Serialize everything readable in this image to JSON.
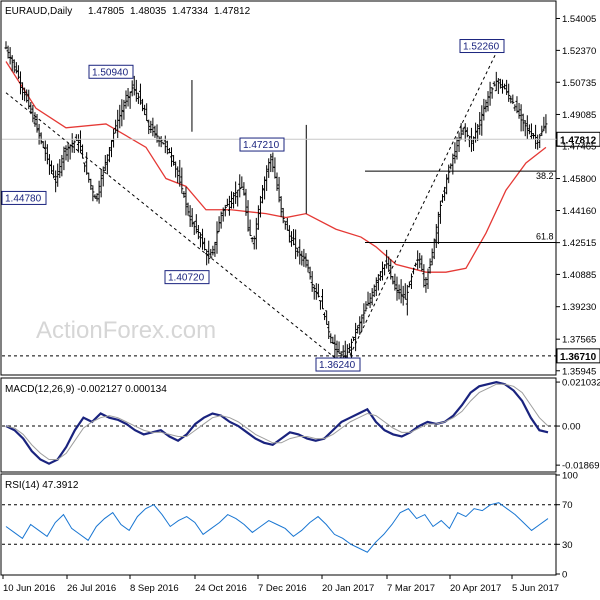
{
  "chart_data": [
    {
      "type": "candlestick",
      "title": "EURAUD,Daily",
      "ohlc_header": {
        "open": "1.47805",
        "high": "1.48035",
        "low": "1.47334",
        "close": "1.47812"
      },
      "ylim": [
        1.3578,
        1.5485
      ],
      "y_ticks": [
        "1.54005",
        "1.52370",
        "1.50735",
        "1.49085",
        "1.47465",
        "1.45800",
        "1.44160",
        "1.42515",
        "1.40885",
        "1.39230",
        "1.37565",
        "1.35945"
      ],
      "price_readout": "1.47812",
      "price_readout_value": 1.47812,
      "support_readout": "1.36710",
      "support_value": 1.3671,
      "x_ticks": [
        "10 Jun 2016",
        "26 Jul 2016",
        "8 Sep 2016",
        "24 Oct 2016",
        "7 Dec 2016",
        "20 Jan 2017",
        "7 Mar 2017",
        "20 Apr 2017",
        "5 Jun 2017"
      ],
      "bars_count": 262,
      "close_path_anchors": [
        [
          0,
          1.525
        ],
        [
          8,
          1.512
        ],
        [
          18,
          1.492
        ],
        [
          28,
          1.472
        ],
        [
          36,
          1.456
        ],
        [
          42,
          1.472
        ],
        [
          48,
          1.476
        ],
        [
          52,
          1.478
        ],
        [
          58,
          1.462
        ],
        [
          65,
          1.447
        ],
        [
          72,
          1.466
        ],
        [
          80,
          1.486
        ],
        [
          86,
          1.496
        ],
        [
          92,
          1.505
        ],
        [
          96,
          1.5
        ],
        [
          104,
          1.484
        ],
        [
          112,
          1.478
        ],
        [
          120,
          1.47
        ],
        [
          128,
          1.452
        ],
        [
          134,
          1.436
        ],
        [
          140,
          1.43
        ],
        [
          145,
          1.42
        ],
        [
          148,
          1.416
        ],
        [
          152,
          1.426
        ],
        [
          156,
          1.44
        ],
        [
          162,
          1.446
        ],
        [
          168,
          1.452
        ],
        [
          172,
          1.454
        ],
        [
          176,
          1.43
        ],
        [
          180,
          1.426
        ],
        [
          184,
          1.446
        ],
        [
          188,
          1.458
        ],
        [
          192,
          1.47
        ],
        [
          196,
          1.456
        ],
        [
          200,
          1.44
        ],
        [
          206,
          1.428
        ],
        [
          212,
          1.42
        ],
        [
          218,
          1.416
        ],
        [
          222,
          1.404
        ],
        [
          228,
          1.396
        ],
        [
          234,
          1.38
        ],
        [
          239,
          1.37
        ],
        [
          246,
          1.366
        ],
        [
          252,
          1.376
        ],
        [
          258,
          1.386
        ],
        [
          264,
          1.396
        ],
        [
          270,
          1.408
        ],
        [
          276,
          1.415
        ],
        [
          282,
          1.402
        ],
        [
          290,
          1.396
        ],
        [
          296,
          1.412
        ],
        [
          300,
          1.418
        ],
        [
          304,
          1.404
        ],
        [
          308,
          1.414
        ],
        [
          314,
          1.44
        ],
        [
          320,
          1.458
        ],
        [
          326,
          1.472
        ],
        [
          332,
          1.484
        ],
        [
          338,
          1.476
        ],
        [
          344,
          1.488
        ],
        [
          350,
          1.5
        ],
        [
          356,
          1.508
        ],
        [
          362,
          1.504
        ],
        [
          368,
          1.497
        ],
        [
          374,
          1.488
        ],
        [
          380,
          1.482
        ],
        [
          386,
          1.478
        ],
        [
          392,
          1.486
        ]
      ],
      "ma_anchors": [
        [
          0,
          1.518
        ],
        [
          30,
          1.494
        ],
        [
          60,
          1.484
        ],
        [
          100,
          1.486
        ],
        [
          140,
          1.474
        ],
        [
          160,
          1.458
        ],
        [
          180,
          1.454
        ],
        [
          200,
          1.442
        ],
        [
          225,
          1.442
        ],
        [
          260,
          1.44
        ],
        [
          280,
          1.438
        ],
        [
          300,
          1.44
        ],
        [
          330,
          1.432
        ],
        [
          355,
          1.428
        ],
        [
          370,
          1.423
        ],
        [
          390,
          1.414
        ],
        [
          420,
          1.41
        ],
        [
          440,
          1.41
        ],
        [
          460,
          1.412
        ],
        [
          480,
          1.43
        ],
        [
          500,
          1.452
        ],
        [
          520,
          1.466
        ],
        [
          540,
          1.474
        ]
      ],
      "annotations": [
        {
          "text": "1.52260",
          "value": 1.5226
        },
        {
          "text": "1.50940",
          "value": 1.5094
        },
        {
          "text": "1.47210",
          "value": 1.4721
        },
        {
          "text": "1.44780",
          "value": 1.4478
        },
        {
          "text": "1.40720",
          "value": 1.4072
        },
        {
          "text": "1.36240",
          "value": 1.3624
        }
      ],
      "fib_levels": [
        {
          "label": "38.2",
          "value": 1.4618
        },
        {
          "label": "61.8",
          "value": 1.4252
        }
      ],
      "watermark": "ActionForex.com"
    },
    {
      "type": "line",
      "title": "MACD(12,26,9) -0.002127 0.000134",
      "ylim": [
        -0.0215,
        0.0225
      ],
      "y_ticks": [
        {
          "label": "0.021032",
          "value": 0.021032
        },
        {
          "label": "0.00",
          "value": 0.0
        },
        {
          "label": "-0.018699",
          "value": -0.018699
        }
      ],
      "series": [
        {
          "name": "MACD",
          "color": "#1a237e",
          "values": [
            0.0,
            -0.002,
            -0.006,
            -0.012,
            -0.016,
            -0.018,
            -0.016,
            -0.01,
            -0.002,
            0.004,
            0.002,
            0.006,
            0.004,
            0.003,
            0.001,
            -0.002,
            -0.004,
            -0.003,
            -0.002,
            -0.005,
            -0.007,
            -0.004,
            0.001,
            0.004,
            0.006,
            0.005,
            0.002,
            0.0,
            -0.003,
            -0.006,
            -0.008,
            -0.009,
            -0.006,
            -0.003,
            -0.004,
            -0.006,
            -0.007,
            -0.006,
            -0.002,
            0.002,
            0.004,
            0.006,
            0.008,
            0.002,
            -0.002,
            -0.004,
            -0.005,
            -0.003,
            0.0,
            0.002,
            0.001,
            0.002,
            0.005,
            0.01,
            0.016,
            0.019,
            0.02,
            0.021,
            0.02,
            0.017,
            0.012,
            0.004,
            -0.002,
            -0.003
          ]
        },
        {
          "name": "Signal",
          "color": "#9e9e9e",
          "values": [
            0.0,
            -0.001,
            -0.004,
            -0.009,
            -0.013,
            -0.016,
            -0.016,
            -0.013,
            -0.007,
            -0.001,
            0.002,
            0.004,
            0.005,
            0.004,
            0.002,
            0.0,
            -0.002,
            -0.003,
            -0.003,
            -0.004,
            -0.005,
            -0.005,
            -0.002,
            0.001,
            0.004,
            0.005,
            0.004,
            0.002,
            -0.001,
            -0.004,
            -0.006,
            -0.008,
            -0.008,
            -0.006,
            -0.005,
            -0.005,
            -0.006,
            -0.006,
            -0.004,
            -0.001,
            0.002,
            0.004,
            0.006,
            0.005,
            0.002,
            -0.001,
            -0.003,
            -0.003,
            -0.001,
            0.001,
            0.001,
            0.002,
            0.004,
            0.007,
            0.012,
            0.016,
            0.018,
            0.02,
            0.02,
            0.019,
            0.016,
            0.01,
            0.004,
            0.0
          ]
        }
      ]
    },
    {
      "type": "line",
      "title": "RSI(14) 47.3912",
      "ylim": [
        0,
        100
      ],
      "y_ticks": [
        {
          "label": "100",
          "value": 100
        },
        {
          "label": "70",
          "value": 70
        },
        {
          "label": "30",
          "value": 30
        },
        {
          "label": "0",
          "value": 0
        }
      ],
      "series": [
        {
          "name": "RSI",
          "color": "#1976d2",
          "values": [
            48,
            42,
            36,
            50,
            44,
            38,
            52,
            60,
            46,
            40,
            34,
            48,
            56,
            62,
            50,
            44,
            58,
            66,
            70,
            60,
            48,
            54,
            58,
            52,
            40,
            46,
            52,
            60,
            56,
            50,
            42,
            48,
            54,
            50,
            46,
            38,
            44,
            52,
            58,
            50,
            40,
            36,
            30,
            26,
            22,
            32,
            40,
            50,
            62,
            66,
            56,
            60,
            48,
            54,
            46,
            62,
            58,
            66,
            64,
            70,
            72,
            66,
            60,
            52,
            44,
            50,
            56
          ]
        }
      ]
    }
  ]
}
